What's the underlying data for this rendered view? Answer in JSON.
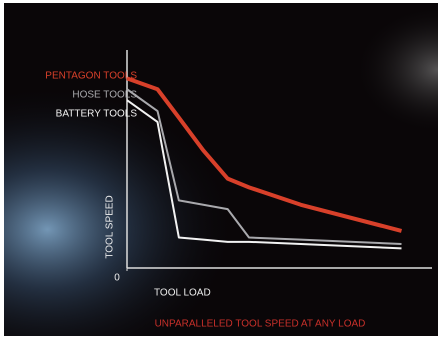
{
  "chart_data": {
    "type": "line",
    "caption": "UNPARALLELED TOOL SPEED AT ANY LOAD",
    "x_label": "TOOL LOAD",
    "y_label": "TOOL SPEED",
    "x": [
      0,
      10,
      17,
      25,
      33,
      40,
      57,
      90
    ],
    "xlim": [
      0,
      100
    ],
    "ylim": [
      0,
      100
    ],
    "xticks": [
      0
    ],
    "series": [
      {
        "name": "PENTAGON TOOLS",
        "color": "#d8402a",
        "values": [
          87,
          82,
          69,
          54,
          41,
          37,
          29,
          17
        ]
      },
      {
        "name": "HOSE TOOLS",
        "color": "#a9a9ad",
        "values": [
          82,
          72,
          31,
          29,
          27,
          14,
          13,
          11
        ]
      },
      {
        "name": "BATTERY TOOLS",
        "color": "#f2f2f2",
        "values": [
          77,
          67,
          14,
          13,
          12,
          12,
          11,
          9
        ]
      }
    ]
  }
}
